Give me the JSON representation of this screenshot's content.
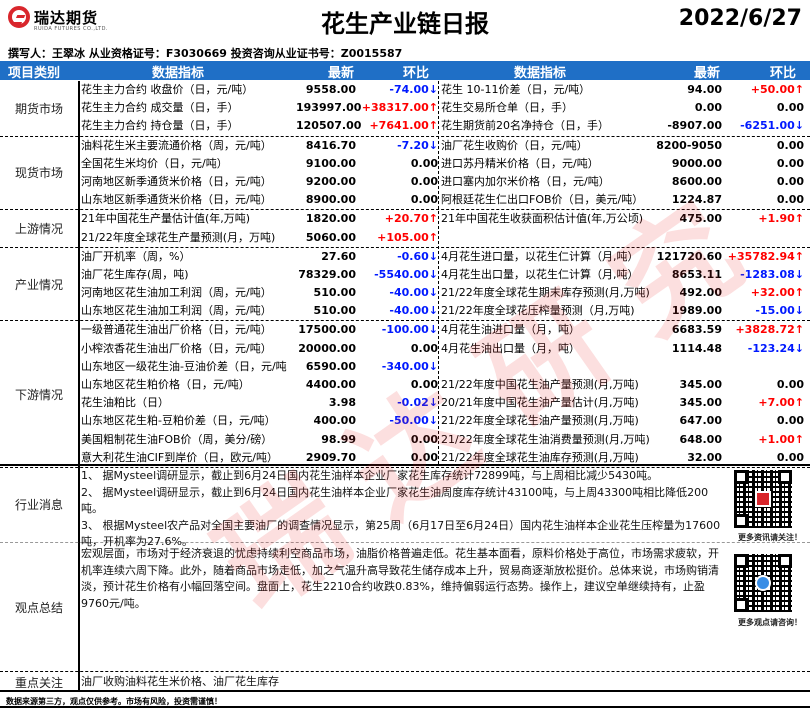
{
  "header": {
    "logo_text": "瑞达期货",
    "logo_sub": "RUIDA FUTURES CO.,LTD.",
    "title": "花生产业链日报",
    "date": "2022/6/27",
    "author_line": "撰写人：王翠冰   从业资格证号：F3030669   投资咨询从业证书号：Z0015587"
  },
  "columns": {
    "category": "项目类别",
    "indicator": "数据指标",
    "latest": "最新",
    "change": "环比",
    "indicator2": "数据指标",
    "latest2": "最新",
    "change2": "环比"
  },
  "colors": {
    "header_bg": "#1f6fc6",
    "up": "#ff0000",
    "down": "#0019ff",
    "brand": "#d9262c"
  },
  "watermark": "瑞达研究",
  "sections": [
    {
      "category": "期货市场",
      "rows": [
        {
          "indicator": "花生主力合约 收盘价（日，元/吨）",
          "latest": "9558.00",
          "change": "-74.00↓",
          "indicator2": "花生 10-11价差（日，元/吨）",
          "latest2": "94.00",
          "change2": "+50.00↑"
        },
        {
          "indicator": "花生主力合约 成交量（日，手）",
          "latest": "193997.00",
          "change": "+38317.00↑",
          "indicator2": "花生交易所仓单（日，手）",
          "latest2": "0.00",
          "change2": "0.00"
        },
        {
          "indicator": "花生主力合约 持仓量（日，手）",
          "latest": "120507.00",
          "change": "+7641.00↑",
          "indicator2": "花生期货前20名净持仓（日，手）",
          "latest2": "-8907.00",
          "change2": "-6251.00↓"
        }
      ]
    },
    {
      "category": "现货市场",
      "rows": [
        {
          "indicator": "油料花生米主要流通价格（周，元/吨）",
          "latest": "8416.70",
          "change": "-7.20↓",
          "indicator2": "油厂花生收购价（日，元/吨）",
          "latest2": "8200-9050",
          "change2": "0.00"
        },
        {
          "indicator": "全国花生米均价（日，元/吨）",
          "latest": "9100.00",
          "change": "0.00",
          "indicator2": "进口苏丹精米价格（日，元/吨）",
          "latest2": "9000.00",
          "change2": "0.00"
        },
        {
          "indicator": "河南地区新季通货米价格（日，元/吨）",
          "latest": "9200.00",
          "change": "0.00",
          "indicator2": "进口塞内加尔米价格（日，元/吨）",
          "latest2": "8600.00",
          "change2": "0.00"
        },
        {
          "indicator": "山东地区新季通货米价格（日，元/吨）",
          "latest": "8900.00",
          "change": "0.00",
          "indicator2": "阿根廷花生仁出口FOB价（日，美元/吨）",
          "latest2": "1224.87",
          "change2": "0.00"
        }
      ]
    },
    {
      "category": "上游情况",
      "rows": [
        {
          "indicator": "21年中国花生产量估计值(年,万吨)",
          "latest": "1820.00",
          "change": "+20.70↑",
          "indicator2": "21年中国花生收获面积估计值(年,万公顷)",
          "latest2": "475.00",
          "change2": "+1.90↑"
        },
        {
          "indicator": "21/22年度全球花生产量预测(月，万吨)",
          "latest": "5060.00",
          "change": "+105.00↑",
          "indicator2": "",
          "latest2": "",
          "change2": ""
        }
      ]
    },
    {
      "category": "产业情况",
      "rows": [
        {
          "indicator": "油厂开机率（周，%）",
          "latest": "27.60",
          "change": "-0.60↓",
          "indicator2": "4月花生进口量，以花生仁计算（月,吨）",
          "latest2": "121720.60",
          "change2": "+35782.94↑"
        },
        {
          "indicator": "油厂花生库存(周，吨)",
          "latest": "78329.00",
          "change": "-5540.00↓",
          "indicator2": "4月花生出口量，以花生仁计算（月,吨）",
          "latest2": "8653.11",
          "change2": "-1283.08↓"
        },
        {
          "indicator": "河南地区花生油加工利润（周，元/吨）",
          "latest": "510.00",
          "change": "-40.00↓",
          "indicator2": "21/22年度全球花生期末库存预测(月,万吨)",
          "latest2": "492.00",
          "change2": "+32.00↑"
        },
        {
          "indicator": "山东地区花生油加工利润（周，元/吨）",
          "latest": "510.00",
          "change": "-40.00↓",
          "indicator2": "21/22年度全球花压榨量预测（月,万吨)",
          "latest2": "1989.00",
          "change2": "-15.00↓"
        }
      ]
    },
    {
      "category": "下游情况",
      "rows": [
        {
          "indicator": "一级普通花生油出厂价格（日，元/吨）",
          "latest": "17500.00",
          "change": "-100.00↓",
          "indicator2": "4月花生油进口量（月，吨）",
          "latest2": "6683.59",
          "change2": "+3828.72↑"
        },
        {
          "indicator": "小榨浓香花生油出厂价格（日，元/吨）",
          "latest": "20000.00",
          "change": "0.00",
          "indicator2": "4月花生油出口量（月，吨）",
          "latest2": "1114.48",
          "change2": "-123.24↓"
        },
        {
          "indicator": "山东地区一级花生油-豆油价差（日，元/吨",
          "latest": "6590.00",
          "change": "-340.00↓",
          "indicator2": "",
          "latest2": "",
          "change2": ""
        },
        {
          "indicator": "山东地区花生粕价格（日，元/吨）",
          "latest": "4400.00",
          "change": "0.00",
          "indicator2": "21/22年度中国花生油产量预测(月,万吨)",
          "latest2": "345.00",
          "change2": "0.00"
        },
        {
          "indicator": "花生油粕比（日）",
          "latest": "3.98",
          "change": "-0.02↓",
          "indicator2": "20/21年度中国花生油产量估计(月,万吨)",
          "latest2": "345.00",
          "change2": "+7.00↑"
        },
        {
          "indicator": "山东地区花生粕-豆粕价差（日，元/吨）",
          "latest": "400.00",
          "change": "-50.00↓",
          "indicator2": "21/22年度全球花生油产量预测(月,万吨)",
          "latest2": "647.00",
          "change2": "0.00"
        },
        {
          "indicator": "美国粗制花生油FOB价（周，美分/磅）",
          "latest": "98.99",
          "change": "0.00",
          "indicator2": "21/22年度全球花生油消费量预测(月,万吨)",
          "latest2": "648.00",
          "change2": "+1.00↑"
        },
        {
          "indicator": "意大利花生油CIF到岸价（日，欧元/吨）",
          "latest": "2909.70",
          "change": "0.00",
          "indicator2": "21/22年度全球花生油库存预测(月,万吨)",
          "latest2": "32.00",
          "change2": "0.00"
        }
      ]
    }
  ],
  "news": {
    "category": "行业消息",
    "lines": [
      "1、 据Mysteel调研显示，截止到6月24日国内花生油样本企业厂家花生库存统计72899吨，与上周相比减少5430吨。",
      "2、 据Mysteel调研显示，截止到6月24日国内花生油样本企业厂家花生油周度库存统计43100吨，与上周43300吨相比降低200吨。",
      "3、 根据Mysteel农产品对全国主要油厂的调查情况显示，第25周（6月17日至6月24日）国内花生油样本企业花生压榨量为17600吨，开机率为27.6%。"
    ],
    "qr_caption": "更多资讯请关注！"
  },
  "summary": {
    "category": "观点总结",
    "text": "宏观层面，市场对于经济衰退的忧虑持续利空商品市场，油脂价格普遍走低。花生基本面看，原料价格处于高位，市场需求疲软，开机率连续六周下降。此外，随着商品市场走低，加之气温升高导致花生储存成本上升，贸易商逐渐放松挺价。总体来说，市场购销清淡，预计花生价格有小幅回落空间。盘面上，花生2210合约收跌0.83%，维持偏弱运行态势。操作上，建议空单继续持有，止盈9760元/吨。",
    "qr_caption": "更多观点请咨询！"
  },
  "focus": {
    "category": "重点关注",
    "text": "油厂收购油料花生米价格、油厂花生库存"
  },
  "footer": "数据来源第三方，观点仅供参考。市场有风险，投资需谨慎！"
}
